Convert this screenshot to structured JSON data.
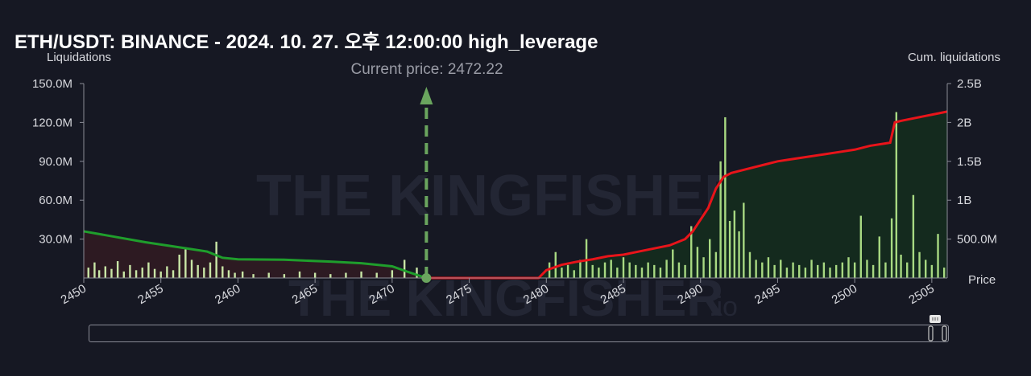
{
  "title": "ETH/USDT: BINANCE - 2024. 10. 27. 오후 12:00:00 high_leverage",
  "chart_data": {
    "type": "bar",
    "left_axis_label": "Liquidations",
    "right_axis_label": "Cum. liquidations",
    "x_axis_label": "Price",
    "current_price_label": "Current price: 2472.22",
    "current_price": 2472.22,
    "xlim": [
      2450,
      2506
    ],
    "x_ticks": [
      2450,
      2455,
      2460,
      2465,
      2470,
      2475,
      2480,
      2485,
      2490,
      2495,
      2500,
      2505
    ],
    "left_ylim": [
      0,
      150000000
    ],
    "left_ticks": [
      "30.0M",
      "60.0M",
      "90.0M",
      "120.0M",
      "150.0M"
    ],
    "right_ylim": [
      0,
      2500000000
    ],
    "right_ticks": [
      "500.0M",
      "1B",
      "1.5B",
      "2B",
      "2.5B"
    ],
    "watermark": "THE KINGFISHER",
    "watermark_suffix": ".io",
    "colors": {
      "background": "#161823",
      "bars": "#c9e6a6",
      "bars_short": "#a8d982",
      "long_cum_line": "#1f9e2c",
      "short_cum_line": "#e8141a",
      "long_area": "#2d1a22",
      "short_area": "#142a1e",
      "current_price_marker": "#6aa55e"
    },
    "long_cumulative": {
      "name": "",
      "x": [
        2450,
        2452,
        2454,
        2456,
        2458,
        2459,
        2460,
        2463,
        2466,
        2468,
        2470,
        2471,
        2472.22
      ],
      "values": [
        600000000,
        530000000,
        460000000,
        400000000,
        340000000,
        260000000,
        240000000,
        235000000,
        210000000,
        190000000,
        150000000,
        80000000,
        0
      ]
    },
    "short_cumulative": {
      "name": "",
      "x": [
        2472.22,
        2479.5,
        2480,
        2481,
        2482,
        2483,
        2484,
        2485,
        2486,
        2487,
        2488,
        2489,
        2489.5,
        2490,
        2490.5,
        2491,
        2491.5,
        2492,
        2493,
        2494,
        2495,
        2496,
        2497,
        2498,
        2499,
        2500,
        2501,
        2502,
        2502.3,
        2502.6,
        2503,
        2504,
        2505,
        2506
      ],
      "values": [
        0,
        0,
        100000000,
        170000000,
        210000000,
        240000000,
        280000000,
        300000000,
        340000000,
        380000000,
        420000000,
        500000000,
        600000000,
        750000000,
        900000000,
        1150000000,
        1300000000,
        1350000000,
        1400000000,
        1450000000,
        1500000000,
        1530000000,
        1560000000,
        1590000000,
        1620000000,
        1650000000,
        1700000000,
        1730000000,
        1740000000,
        2000000000,
        2020000000,
        2060000000,
        2100000000,
        2140000000
      ]
    },
    "bars": [
      {
        "x": 2450.3,
        "v": 8000000
      },
      {
        "x": 2450.7,
        "v": 12000000
      },
      {
        "x": 2451.0,
        "v": 6000000
      },
      {
        "x": 2451.4,
        "v": 9000000
      },
      {
        "x": 2451.8,
        "v": 7000000
      },
      {
        "x": 2452.2,
        "v": 13000000
      },
      {
        "x": 2452.6,
        "v": 5000000
      },
      {
        "x": 2453.0,
        "v": 10000000
      },
      {
        "x": 2453.4,
        "v": 6000000
      },
      {
        "x": 2453.8,
        "v": 8000000
      },
      {
        "x": 2454.2,
        "v": 12000000
      },
      {
        "x": 2454.6,
        "v": 7000000
      },
      {
        "x": 2455.0,
        "v": 5000000
      },
      {
        "x": 2455.4,
        "v": 9000000
      },
      {
        "x": 2455.8,
        "v": 6000000
      },
      {
        "x": 2456.2,
        "v": 18000000
      },
      {
        "x": 2456.6,
        "v": 22000000
      },
      {
        "x": 2457.0,
        "v": 14000000
      },
      {
        "x": 2457.4,
        "v": 10000000
      },
      {
        "x": 2457.8,
        "v": 8000000
      },
      {
        "x": 2458.2,
        "v": 12000000
      },
      {
        "x": 2458.6,
        "v": 28000000
      },
      {
        "x": 2459.0,
        "v": 9000000
      },
      {
        "x": 2459.4,
        "v": 6000000
      },
      {
        "x": 2459.8,
        "v": 4000000
      },
      {
        "x": 2460.3,
        "v": 5000000
      },
      {
        "x": 2461.0,
        "v": 3000000
      },
      {
        "x": 2462.0,
        "v": 4000000
      },
      {
        "x": 2463.0,
        "v": 3000000
      },
      {
        "x": 2464.0,
        "v": 5000000
      },
      {
        "x": 2465.0,
        "v": 4000000
      },
      {
        "x": 2466.0,
        "v": 3000000
      },
      {
        "x": 2467.0,
        "v": 4000000
      },
      {
        "x": 2468.0,
        "v": 5000000
      },
      {
        "x": 2469.0,
        "v": 4000000
      },
      {
        "x": 2470.0,
        "v": 6000000
      },
      {
        "x": 2470.8,
        "v": 14000000
      },
      {
        "x": 2471.6,
        "v": 8000000
      },
      {
        "x": 2480.2,
        "v": 12000000
      },
      {
        "x": 2480.6,
        "v": 20000000
      },
      {
        "x": 2481.0,
        "v": 8000000
      },
      {
        "x": 2481.4,
        "v": 10000000
      },
      {
        "x": 2481.8,
        "v": 6000000
      },
      {
        "x": 2482.2,
        "v": 14000000
      },
      {
        "x": 2482.6,
        "v": 30000000
      },
      {
        "x": 2483.0,
        "v": 10000000
      },
      {
        "x": 2483.4,
        "v": 8000000
      },
      {
        "x": 2483.8,
        "v": 12000000
      },
      {
        "x": 2484.2,
        "v": 14000000
      },
      {
        "x": 2484.6,
        "v": 8000000
      },
      {
        "x": 2485.0,
        "v": 16000000
      },
      {
        "x": 2485.4,
        "v": 12000000
      },
      {
        "x": 2485.8,
        "v": 10000000
      },
      {
        "x": 2486.2,
        "v": 8000000
      },
      {
        "x": 2486.6,
        "v": 12000000
      },
      {
        "x": 2487.0,
        "v": 10000000
      },
      {
        "x": 2487.4,
        "v": 8000000
      },
      {
        "x": 2487.8,
        "v": 14000000
      },
      {
        "x": 2488.2,
        "v": 22000000
      },
      {
        "x": 2488.6,
        "v": 12000000
      },
      {
        "x": 2489.0,
        "v": 10000000
      },
      {
        "x": 2489.4,
        "v": 40000000
      },
      {
        "x": 2489.8,
        "v": 24000000
      },
      {
        "x": 2490.2,
        "v": 16000000
      },
      {
        "x": 2490.6,
        "v": 30000000
      },
      {
        "x": 2491.0,
        "v": 20000000
      },
      {
        "x": 2491.3,
        "v": 90000000
      },
      {
        "x": 2491.6,
        "v": 124000000
      },
      {
        "x": 2491.9,
        "v": 44000000
      },
      {
        "x": 2492.2,
        "v": 52000000
      },
      {
        "x": 2492.5,
        "v": 36000000
      },
      {
        "x": 2492.8,
        "v": 58000000
      },
      {
        "x": 2493.2,
        "v": 20000000
      },
      {
        "x": 2493.6,
        "v": 14000000
      },
      {
        "x": 2494.0,
        "v": 12000000
      },
      {
        "x": 2494.4,
        "v": 16000000
      },
      {
        "x": 2494.8,
        "v": 10000000
      },
      {
        "x": 2495.2,
        "v": 14000000
      },
      {
        "x": 2495.6,
        "v": 8000000
      },
      {
        "x": 2496.0,
        "v": 12000000
      },
      {
        "x": 2496.4,
        "v": 10000000
      },
      {
        "x": 2496.8,
        "v": 8000000
      },
      {
        "x": 2497.2,
        "v": 14000000
      },
      {
        "x": 2497.6,
        "v": 10000000
      },
      {
        "x": 2498.0,
        "v": 12000000
      },
      {
        "x": 2498.4,
        "v": 8000000
      },
      {
        "x": 2498.8,
        "v": 10000000
      },
      {
        "x": 2499.2,
        "v": 12000000
      },
      {
        "x": 2499.6,
        "v": 16000000
      },
      {
        "x": 2500.0,
        "v": 12000000
      },
      {
        "x": 2500.4,
        "v": 48000000
      },
      {
        "x": 2500.8,
        "v": 14000000
      },
      {
        "x": 2501.2,
        "v": 10000000
      },
      {
        "x": 2501.6,
        "v": 32000000
      },
      {
        "x": 2502.0,
        "v": 12000000
      },
      {
        "x": 2502.4,
        "v": 46000000
      },
      {
        "x": 2502.7,
        "v": 128000000
      },
      {
        "x": 2503.0,
        "v": 18000000
      },
      {
        "x": 2503.4,
        "v": 12000000
      },
      {
        "x": 2503.8,
        "v": 64000000
      },
      {
        "x": 2504.2,
        "v": 20000000
      },
      {
        "x": 2504.6,
        "v": 14000000
      },
      {
        "x": 2505.0,
        "v": 10000000
      },
      {
        "x": 2505.4,
        "v": 34000000
      },
      {
        "x": 2505.8,
        "v": 8000000
      }
    ]
  }
}
